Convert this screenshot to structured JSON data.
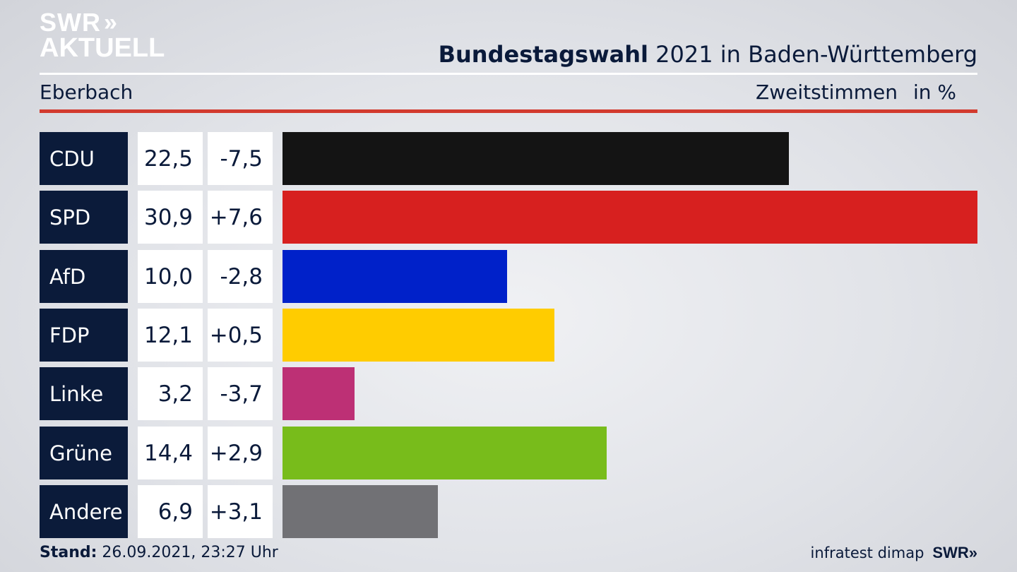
{
  "brand": {
    "logo_line1": "SWR",
    "logo_chevrons": "»",
    "logo_line2": "AKTUELL"
  },
  "header": {
    "title_bold": "Bundestagswahl",
    "title_rest": " 2021 in Baden-Württemberg",
    "region": "Eberbach",
    "metric": "Zweitstimmen",
    "unit": "in %"
  },
  "chart_data": {
    "type": "bar",
    "orientation": "horizontal",
    "categories": [
      "CDU",
      "SPD",
      "AfD",
      "FDP",
      "Linke",
      "Grüne",
      "Andere"
    ],
    "series": [
      {
        "values": [
          22.5,
          30.9,
          10.0,
          12.1,
          3.2,
          14.4,
          6.9
        ]
      }
    ],
    "changes": [
      -7.5,
      7.6,
      -2.8,
      0.5,
      -3.7,
      2.9,
      3.1
    ],
    "value_labels": [
      "22,5",
      "30,9",
      "10,0",
      "12,1",
      "3,2",
      "14,4",
      "6,9"
    ],
    "change_labels": [
      "-7,5",
      "+7,6",
      "-2,8",
      "+0,5",
      "-3,7",
      "+2,9",
      "+3,1"
    ],
    "colors": [
      "#141414",
      "#d7201f",
      "#0021c9",
      "#ffcc00",
      "#bd3075",
      "#78bc1b",
      "#717175"
    ],
    "xlim": [
      0,
      30.9
    ],
    "grid": false,
    "legend": "none"
  },
  "footer": {
    "stand_label": "Stand:",
    "stand_value": " 26.09.2021, 23:27 Uhr",
    "source": "infratest dimap",
    "swr": "SWR",
    "swr_chevrons": "»"
  }
}
